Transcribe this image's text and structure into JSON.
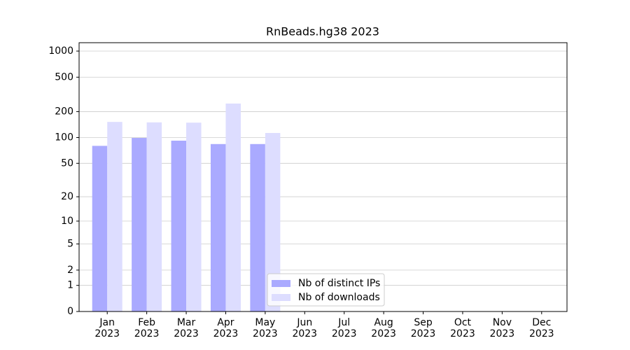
{
  "chart_data": {
    "type": "bar",
    "title": "RnBeads.hg38 2023",
    "categories": [
      "Jan\n2023",
      "Feb\n2023",
      "Mar\n2023",
      "Apr\n2023",
      "May\n2023",
      "Jun\n2023",
      "Jul\n2023",
      "Aug\n2023",
      "Sep\n2023",
      "Oct\n2023",
      "Nov\n2023",
      "Dec\n2023"
    ],
    "series": [
      {
        "name": "Nb of distinct IPs",
        "color": "#aaaaff",
        "values": [
          80,
          99,
          92,
          84,
          84,
          null,
          null,
          null,
          null,
          null,
          null,
          null
        ]
      },
      {
        "name": "Nb of downloads",
        "color": "#ddddff",
        "values": [
          152,
          150,
          149,
          248,
          113,
          null,
          null,
          null,
          null,
          null,
          null,
          null
        ]
      }
    ],
    "yscale": "log1p",
    "ylim": [
      0,
      1250
    ],
    "yticks": [
      0,
      1,
      2,
      5,
      10,
      20,
      50,
      100,
      200,
      500,
      1000
    ],
    "grid": true,
    "legend": "lower center"
  }
}
